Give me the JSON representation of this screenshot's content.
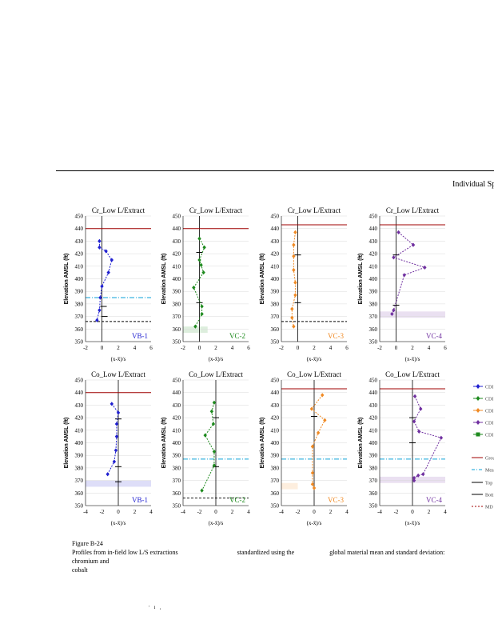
{
  "header": "Individual Sp",
  "caption": {
    "figure": "Figure B-24",
    "line1a": "Profiles from in-field low L/S extractions",
    "line1b": "standardized using the",
    "line1c": "global material mean and standard deviation: chromium and",
    "line2": "cobalt"
  },
  "footer": "' i ,",
  "legend_items": [
    {
      "label": "CDI",
      "color": "#1f1fd0",
      "marker": "diamond"
    },
    {
      "label": "CDI",
      "color": "#1e8a1e",
      "marker": "diamond"
    },
    {
      "label": "CDI",
      "color": "#f08a24",
      "marker": "diamond"
    },
    {
      "label": "CDI",
      "color": "#7030a0",
      "marker": "diamond"
    },
    {
      "label": "CDI",
      "color": "#1e8a1e",
      "marker": "square"
    },
    {
      "label": "Grou",
      "color": "#a00000",
      "marker": "line"
    },
    {
      "label": "Mea",
      "color": "#0aa0d8",
      "marker": "dashdot"
    },
    {
      "label": "Top",
      "color": "#000000",
      "marker": "line"
    },
    {
      "label": "Bott",
      "color": "#000000",
      "marker": "line"
    },
    {
      "label": "MD",
      "color": "#a00000",
      "marker": "dots"
    }
  ],
  "chart_data": [
    {
      "type": "line",
      "title": "Cr_Low L/Extract",
      "station": "VB-1",
      "color": "#1f1fd0",
      "ylabel": "Elevation AMSL (ft)",
      "xlabel": "(x-x̄)/s",
      "ylim": [
        350,
        450
      ],
      "xlim": [
        -2,
        6
      ],
      "xticks": [
        -2,
        0,
        2,
        4,
        6
      ],
      "yticks": [
        350,
        360,
        370,
        380,
        390,
        400,
        410,
        420,
        430,
        440,
        450
      ],
      "x": [
        -0.3,
        -0.3,
        0.5,
        1.2,
        0.8,
        0.0,
        -0.2,
        -0.3,
        -0.6
      ],
      "y": [
        430,
        425,
        422,
        415,
        405,
        394,
        385,
        375,
        367
      ],
      "ground": 440,
      "mean_water": 385,
      "md_line": 366,
      "bar_ticks": [
        [
          0.2,
          378
        ],
        [
          0.3,
          370
        ]
      ],
      "shade": null
    },
    {
      "type": "line",
      "title": "Cr_Low L/Extract",
      "station": "VC-2",
      "color": "#1e8a1e",
      "ylabel": "Elevation AMSL (ft)",
      "xlabel": "(x-x̄)/s",
      "ylim": [
        350,
        450
      ],
      "xlim": [
        -2,
        6
      ],
      "xticks": [
        -2,
        0,
        2,
        4,
        6
      ],
      "yticks": [
        350,
        360,
        370,
        380,
        390,
        400,
        410,
        420,
        430,
        440,
        450
      ],
      "x": [
        0.0,
        0.6,
        0.0,
        0.2,
        0.5,
        -0.7,
        0.3,
        0.3,
        -0.5
      ],
      "y": [
        432,
        425,
        415,
        411,
        405,
        393,
        378,
        372,
        362
      ],
      "ground": 440,
      "mean_water": null,
      "md_line": null,
      "bar_ticks": [
        [
          0,
          421
        ],
        [
          0,
          381
        ]
      ],
      "shade": [
        -2,
        1,
        357,
        362
      ]
    },
    {
      "type": "line",
      "title": "Cr_Low L/Extract",
      "station": "VC-3",
      "color": "#f08a24",
      "ylabel": "Elevation AMSL (ft)",
      "xlabel": "(x-x̄)/s",
      "ylim": [
        350,
        450
      ],
      "xlim": [
        -2,
        6
      ],
      "xticks": [
        -2,
        0,
        2,
        4,
        6
      ],
      "yticks": [
        350,
        360,
        370,
        380,
        390,
        400,
        410,
        420,
        430,
        440,
        450
      ],
      "x": [
        -0.3,
        -0.5,
        -0.5,
        -0.5,
        -0.3,
        -0.3,
        -0.7,
        -0.7,
        -0.5
      ],
      "y": [
        437,
        427,
        418,
        407,
        397,
        387,
        376,
        369,
        362
      ],
      "ground": 443,
      "mean_water": null,
      "md_line": 366,
      "bar_ticks": [
        [
          0,
          419
        ],
        [
          0,
          381
        ]
      ],
      "shade": null
    },
    {
      "type": "line",
      "title": "Cr_Low L/Extract",
      "station": "VC-4",
      "color": "#7030a0",
      "ylabel": "Elevation AMSL (ft)",
      "xlabel": "(x-x̄)/s",
      "ylim": [
        350,
        450
      ],
      "xlim": [
        -2,
        6
      ],
      "xticks": [
        -2,
        0,
        2,
        4,
        6
      ],
      "yticks": [
        350,
        360,
        370,
        380,
        390,
        400,
        410,
        420,
        430,
        440,
        450
      ],
      "x": [
        0.3,
        2.1,
        -0.3,
        3.5,
        1.0,
        -0.3,
        -0.5
      ],
      "y": [
        437,
        427,
        417,
        409,
        403,
        375,
        372
      ],
      "ground": 443,
      "mean_water": null,
      "md_line": null,
      "bar_ticks": [
        [
          0,
          419
        ],
        [
          0,
          379
        ]
      ],
      "shade": [
        -2,
        6,
        369,
        374
      ]
    },
    {
      "type": "line",
      "title": "Co_Low L/Extract",
      "station": "VB-1",
      "color": "#1f1fd0",
      "ylabel": "Elevation AMSL (ft)",
      "xlabel": "(x-x̄)/s",
      "ylim": [
        350,
        450
      ],
      "xlim": [
        -4,
        4
      ],
      "xticks": [
        -4,
        -2,
        0,
        2,
        4
      ],
      "yticks": [
        350,
        360,
        370,
        380,
        390,
        400,
        410,
        420,
        430,
        440,
        450
      ],
      "x": [
        -0.8,
        0.0,
        -0.2,
        -0.2,
        -0.3,
        -0.5,
        -1.3
      ],
      "y": [
        431,
        424,
        415,
        405,
        394,
        385,
        375
      ],
      "ground": 440,
      "mean_water": null,
      "md_line": null,
      "bar_ticks": [
        [
          0,
          419
        ],
        [
          0,
          381
        ],
        [
          0,
          369
        ]
      ],
      "shade": [
        -4,
        4,
        365,
        370
      ]
    },
    {
      "type": "line",
      "title": "Co_Low L/Extract",
      "station": "VC-2",
      "color": "#1e8a1e",
      "ylabel": "Elevation AMSL (ft)",
      "xlabel": "(x-x̄)/s",
      "ylim": [
        350,
        450
      ],
      "xlim": [
        -4,
        4
      ],
      "xticks": [
        -4,
        -2,
        0,
        2,
        4
      ],
      "yticks": [
        350,
        360,
        370,
        380,
        390,
        400,
        410,
        420,
        430,
        440,
        450
      ],
      "x": [
        -0.2,
        -0.5,
        -0.3,
        -1.3,
        -0.2,
        -0.2,
        -1.7
      ],
      "y": [
        432,
        425,
        415,
        406,
        393,
        382,
        362
      ],
      "ground": null,
      "mean_water": 387,
      "md_line": 356,
      "bar_ticks": [
        [
          0,
          420
        ],
        [
          0,
          381
        ]
      ],
      "shade": null
    },
    {
      "type": "line",
      "title": "Co_Low L/Extract",
      "station": "VC-3",
      "color": "#f08a24",
      "ylabel": "Elevation AMSL (ft)",
      "xlabel": "(x-x̄)/s",
      "ylim": [
        350,
        450
      ],
      "xlim": [
        -4,
        4
      ],
      "xticks": [
        -4,
        -2,
        0,
        2,
        4
      ],
      "yticks": [
        350,
        360,
        370,
        380,
        390,
        400,
        410,
        420,
        430,
        440,
        450
      ],
      "x": [
        1.0,
        -0.3,
        1.3,
        0.5,
        -0.2,
        -0.2,
        -0.2,
        0.0
      ],
      "y": [
        438,
        427,
        418,
        408,
        397,
        376,
        367,
        364
      ],
      "ground": 443,
      "mean_water": 387,
      "md_line": null,
      "bar_ticks": [
        [
          0,
          421
        ]
      ],
      "shade": [
        -4,
        -2,
        363,
        368
      ]
    },
    {
      "type": "line",
      "title": "Co_Low L/Extract",
      "station": "VC-4",
      "color": "#7030a0",
      "ylabel": "Elevation AMSL (ft)",
      "xlabel": "(x-x̄)/s",
      "ylim": [
        350,
        450
      ],
      "xlim": [
        -4,
        4
      ],
      "xticks": [
        -4,
        -2,
        0,
        2,
        4
      ],
      "yticks": [
        350,
        360,
        370,
        380,
        390,
        400,
        410,
        420,
        430,
        440,
        450
      ],
      "x": [
        0.3,
        1.0,
        0.2,
        0.8,
        3.5,
        1.3,
        0.7,
        0.2,
        0.2
      ],
      "y": [
        437,
        427,
        417,
        409,
        404,
        375,
        374,
        372,
        370
      ],
      "ground": 443,
      "mean_water": 387,
      "md_line": null,
      "bar_ticks": [
        [
          0,
          420
        ],
        [
          0,
          400
        ]
      ],
      "shade": [
        -4,
        4,
        368,
        373
      ]
    }
  ]
}
